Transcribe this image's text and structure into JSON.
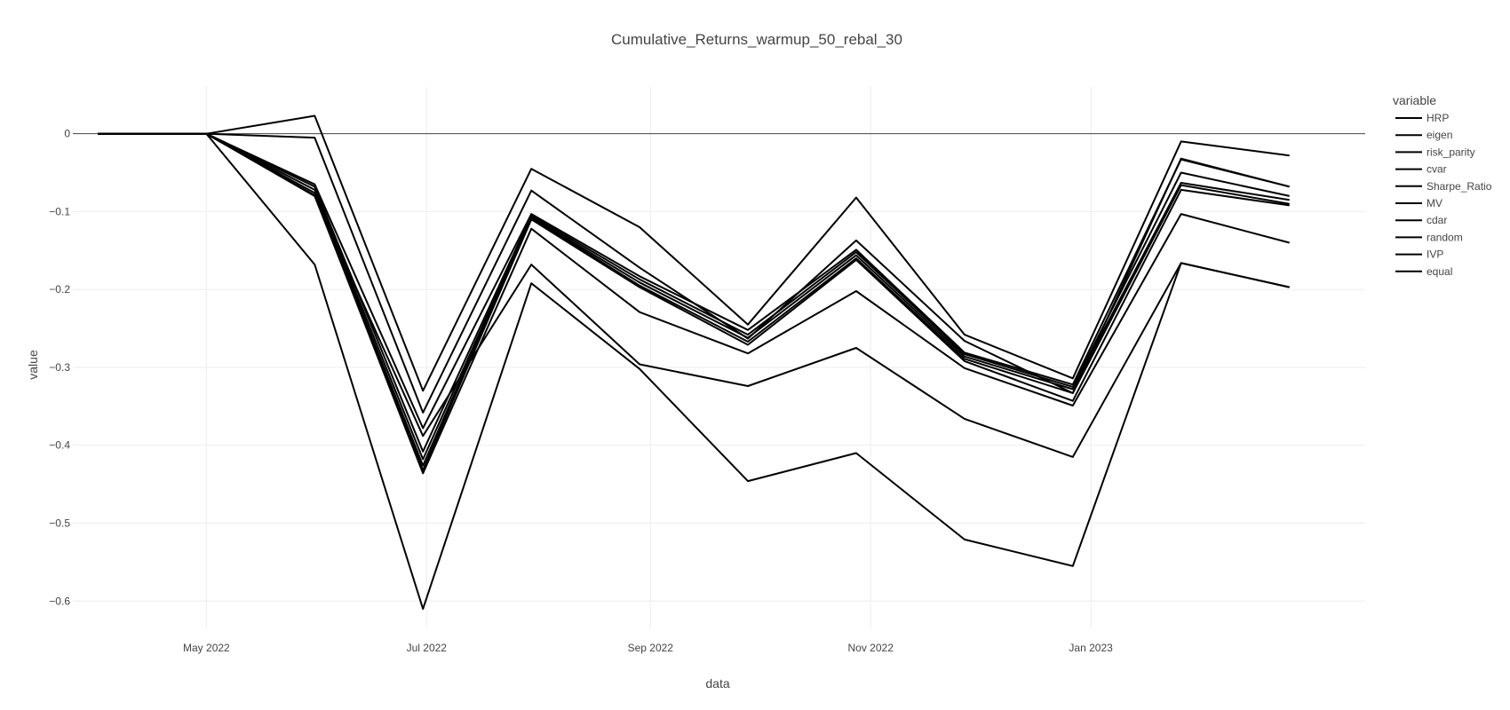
{
  "chart_data": {
    "type": "line",
    "title": "Cumulative_Returns_warmup_50_rebal_30",
    "xlabel": "data",
    "ylabel": "value",
    "legend_title": "variable",
    "legend_position": "right",
    "grid": true,
    "line_color": "#000000",
    "x": [
      "2022-04-01",
      "2022-05-01",
      "2022-05-31",
      "2022-06-30",
      "2022-07-30",
      "2022-08-29",
      "2022-09-28",
      "2022-10-28",
      "2022-11-27",
      "2022-12-27",
      "2023-01-26",
      "2023-02-25"
    ],
    "xlim": [
      "2022-03-25",
      "2023-03-18"
    ],
    "ylim": [
      -0.635,
      0.06
    ],
    "x_ticks": [
      {
        "value": "2022-05-01",
        "label": "May 2022"
      },
      {
        "value": "2022-07-01",
        "label": "Jul 2022"
      },
      {
        "value": "2022-09-01",
        "label": "Sep 2022"
      },
      {
        "value": "2022-11-01",
        "label": "Nov 2022"
      },
      {
        "value": "2023-01-01",
        "label": "Jan 2023"
      }
    ],
    "y_ticks": [
      {
        "value": 0,
        "label": "0"
      },
      {
        "value": -0.1,
        "label": "−0.1"
      },
      {
        "value": -0.2,
        "label": "−0.2"
      },
      {
        "value": -0.3,
        "label": "−0.3"
      },
      {
        "value": -0.4,
        "label": "−0.4"
      },
      {
        "value": -0.5,
        "label": "−0.5"
      },
      {
        "value": -0.6,
        "label": "−0.6"
      }
    ],
    "series": [
      {
        "name": "HRP",
        "values": [
          0,
          0,
          0.023,
          -0.33,
          -0.045,
          -0.12,
          -0.245,
          -0.082,
          -0.258,
          -0.314,
          -0.01,
          -0.028
        ]
      },
      {
        "name": "eigen",
        "values": [
          0,
          0,
          -0.005,
          -0.358,
          -0.073,
          -0.172,
          -0.263,
          -0.137,
          -0.266,
          -0.333,
          -0.032,
          -0.068
        ]
      },
      {
        "name": "risk_parity",
        "values": [
          0,
          0,
          -0.065,
          -0.378,
          -0.103,
          -0.183,
          -0.252,
          -0.149,
          -0.281,
          -0.322,
          -0.033,
          -0.068
        ]
      },
      {
        "name": "cvar",
        "values": [
          0,
          0,
          -0.068,
          -0.408,
          -0.105,
          -0.187,
          -0.258,
          -0.152,
          -0.283,
          -0.325,
          -0.05,
          -0.08
        ]
      },
      {
        "name": "Sharpe_Ratio",
        "values": [
          0,
          0,
          -0.072,
          -0.418,
          -0.107,
          -0.191,
          -0.262,
          -0.156,
          -0.286,
          -0.328,
          -0.063,
          -0.085
        ]
      },
      {
        "name": "MV",
        "values": [
          0,
          0,
          -0.076,
          -0.426,
          -0.108,
          -0.195,
          -0.267,
          -0.16,
          -0.289,
          -0.333,
          -0.066,
          -0.09
        ]
      },
      {
        "name": "cdar",
        "values": [
          0,
          0,
          -0.08,
          -0.432,
          -0.11,
          -0.197,
          -0.271,
          -0.162,
          -0.292,
          -0.343,
          -0.072,
          -0.092
        ]
      },
      {
        "name": "random",
        "values": [
          0,
          0,
          -0.079,
          -0.436,
          -0.122,
          -0.229,
          -0.282,
          -0.202,
          -0.301,
          -0.349,
          -0.103,
          -0.14
        ]
      },
      {
        "name": "IVP",
        "values": [
          0,
          0,
          -0.08,
          -0.388,
          -0.168,
          -0.296,
          -0.324,
          -0.275,
          -0.366,
          -0.415,
          -0.166,
          -0.197
        ]
      },
      {
        "name": "equal",
        "values": [
          0,
          0,
          -0.168,
          -0.61,
          -0.192,
          -0.302,
          -0.446,
          -0.41,
          -0.521,
          -0.555,
          -0.166,
          -0.197
        ]
      }
    ]
  }
}
